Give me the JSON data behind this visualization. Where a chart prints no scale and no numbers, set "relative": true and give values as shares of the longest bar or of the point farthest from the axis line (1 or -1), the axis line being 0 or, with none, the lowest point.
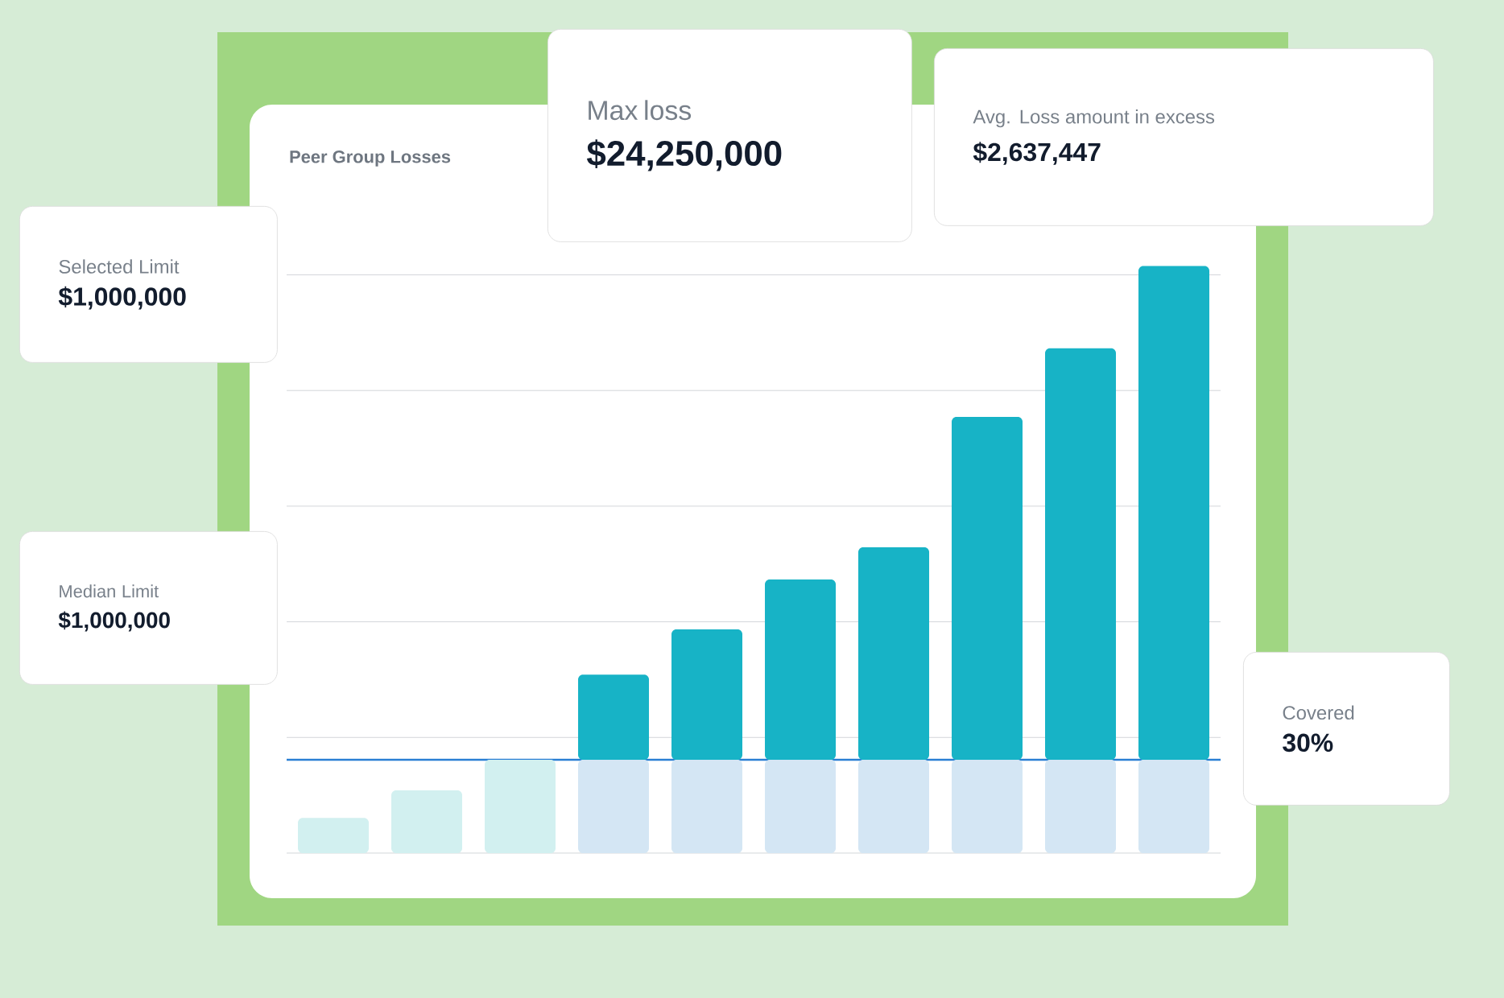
{
  "chart_data": {
    "type": "bar",
    "title": "Peer Group Losses",
    "relative": true,
    "stacked": true,
    "grid": "y",
    "categories": [
      null,
      null,
      null,
      null,
      null,
      null,
      null,
      null,
      null,
      null
    ],
    "series": [
      {
        "colors": [
          "#d2f0f0",
          "#d2f0f0",
          "#d2f0f0",
          "#d4e6f4",
          "#d4e6f4",
          "#d4e6f4",
          "#d4e6f4",
          "#d4e6f4",
          "#d4e6f4",
          "#d4e6f4"
        ],
        "values": [
          0.06,
          0.107,
          0.159,
          0.159,
          0.159,
          0.159,
          0.159,
          0.159,
          0.159,
          0.159
        ]
      },
      {
        "color": "#17b3c6",
        "values": [
          null,
          null,
          null,
          0.145,
          0.222,
          0.307,
          0.362,
          0.584,
          0.701,
          0.841
        ]
      }
    ],
    "ref_lines": [
      {
        "axis": "y",
        "value": 0.159,
        "color": "#2a7fd4"
      }
    ],
    "annotations": [
      "Selected Limit",
      "$1,000,000",
      "Max loss",
      "$24,250,000",
      "Median Limit",
      "$1,000,000",
      "Avg. Loss amount in excess",
      "$2,637,447",
      "Covered",
      "30%"
    ]
  }
}
